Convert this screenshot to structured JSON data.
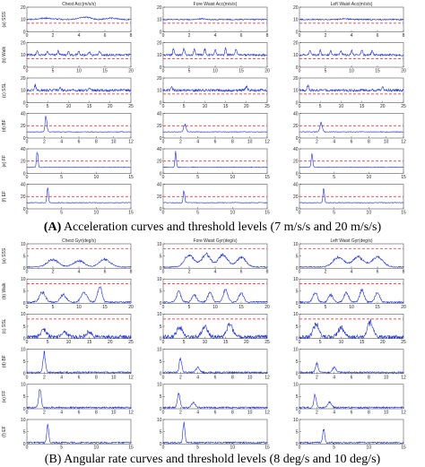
{
  "figure": {
    "caption_a_letter": "(A)",
    "caption_a_text": " Acceleration curves and threshold levels (7 m/s/s and 20 m/s/s)",
    "caption_b_text": "(B) Angular rate curves and threshold levels (8 deg/s and 10 deg/s)"
  },
  "colors": {
    "signal": "#1a2fd0",
    "threshold": "#e02020",
    "axis": "#333333"
  },
  "chart_data": [
    {
      "type": "line",
      "panel": "A",
      "row_labels": [
        "(a) SSS",
        "(b) Walk",
        "(c) SSL",
        "(d) BF",
        "(e) FF",
        "(f) EF"
      ],
      "column_titles": [
        "Chest Acc(m/s/s)",
        "Fore Waist Acc(m/s/s)",
        "Left Waist Acc(m/s/s)"
      ],
      "thresholds": [
        7,
        20
      ],
      "rows": [
        {
          "xlim": [
            0,
            8
          ],
          "ylim": [
            0,
            20
          ],
          "xticks": [
            0,
            2,
            4,
            6,
            8
          ],
          "yticks": [
            0,
            10,
            20
          ],
          "threshold": 7,
          "baseline": 10,
          "noise": 0.5,
          "events": [
            [
              {
                "t": 1.5,
                "a": 1,
                "w": 0.8
              },
              {
                "t": 4.5,
                "a": 2,
                "w": 0.6
              },
              {
                "t": 6.5,
                "a": 1,
                "w": 0.6
              }
            ],
            [
              {
                "t": 3.0,
                "a": 0.6,
                "w": 0.4
              }
            ],
            [
              {
                "t": 3.5,
                "a": 0.6,
                "w": 0.4
              }
            ]
          ]
        },
        {
          "xlim": [
            0,
            20
          ],
          "ylim": [
            0,
            20
          ],
          "xticks": [
            0,
            5,
            10,
            15,
            20
          ],
          "yticks": [
            0,
            10,
            20
          ],
          "threshold": 7,
          "baseline": 10,
          "noise": 0.8,
          "events": [
            [
              {
                "t": 2,
                "a": 3,
                "w": 0.2
              },
              {
                "t": 4,
                "a": 3,
                "w": 0.2
              },
              {
                "t": 6,
                "a": 3,
                "w": 0.2
              },
              {
                "t": 8,
                "a": 3,
                "w": 0.2
              },
              {
                "t": 10,
                "a": 3,
                "w": 0.2
              },
              {
                "t": 12,
                "a": 3,
                "w": 0.2
              },
              {
                "t": 14,
                "a": 3,
                "w": 0.2
              }
            ],
            [
              {
                "t": 2,
                "a": 5,
                "w": 0.2
              },
              {
                "t": 4,
                "a": 5,
                "w": 0.2
              },
              {
                "t": 6,
                "a": 5,
                "w": 0.2
              },
              {
                "t": 8,
                "a": 5,
                "w": 0.2
              },
              {
                "t": 10,
                "a": 5,
                "w": 0.2
              },
              {
                "t": 12,
                "a": 5,
                "w": 0.2
              },
              {
                "t": 14,
                "a": 5,
                "w": 0.2
              }
            ],
            [
              {
                "t": 2,
                "a": 4,
                "w": 0.2
              },
              {
                "t": 4,
                "a": 4,
                "w": 0.2
              },
              {
                "t": 6,
                "a": 4,
                "w": 0.2
              },
              {
                "t": 8,
                "a": 4,
                "w": 0.2
              },
              {
                "t": 10,
                "a": 4,
                "w": 0.2
              },
              {
                "t": 12,
                "a": 4,
                "w": 0.2
              },
              {
                "t": 14,
                "a": 4,
                "w": 0.2
              }
            ]
          ]
        },
        {
          "xlim": [
            0,
            25
          ],
          "ylim": [
            0,
            20
          ],
          "xticks": [
            0,
            5,
            10,
            15,
            20,
            25
          ],
          "yticks": [
            0,
            10,
            20
          ],
          "threshold": 7,
          "baseline": 10,
          "noise": 1,
          "events": [
            [
              {
                "t": 2,
                "a": 4,
                "w": 0.3
              },
              {
                "t": 8,
                "a": 2,
                "w": 0.3
              },
              {
                "t": 15,
                "a": 2,
                "w": 0.3
              }
            ],
            [
              {
                "t": 2,
                "a": 3,
                "w": 0.3
              },
              {
                "t": 20,
                "a": 3,
                "w": 0.3
              }
            ],
            [
              {
                "t": 2,
                "a": 4,
                "w": 0.3
              },
              {
                "t": 20,
                "a": 3,
                "w": 0.3
              }
            ]
          ]
        },
        {
          "xlim": [
            0,
            12
          ],
          "ylim": [
            0,
            40
          ],
          "xticks": [
            0,
            2,
            4,
            6,
            8,
            10,
            12
          ],
          "yticks": [
            0,
            20,
            40
          ],
          "threshold": 20,
          "baseline": 10,
          "noise": 0.5,
          "events": [
            [
              {
                "t": 2.2,
                "a": 25,
                "w": 0.15
              }
            ],
            [
              {
                "t": 2.5,
                "a": 12,
                "w": 0.2
              }
            ],
            [
              {
                "t": 2.5,
                "a": 14,
                "w": 0.2
              }
            ]
          ]
        },
        {
          "xlim": [
            0,
            15
          ],
          "ylim": [
            0,
            40
          ],
          "xticks": [
            0,
            5,
            10,
            15
          ],
          "yticks": [
            0,
            20,
            40
          ],
          "threshold": 20,
          "baseline": 10,
          "noise": 0.5,
          "events": [
            [
              {
                "t": 1.5,
                "a": 26,
                "w": 0.15
              }
            ],
            [
              {
                "t": 1.8,
                "a": 24,
                "w": 0.15
              }
            ],
            [
              {
                "t": 1.8,
                "a": 22,
                "w": 0.15
              }
            ]
          ]
        },
        {
          "xlim": [
            0,
            15
          ],
          "ylim": [
            0,
            40
          ],
          "xticks": [
            0,
            5,
            10,
            15
          ],
          "yticks": [
            0,
            20,
            40
          ],
          "threshold": 20,
          "baseline": 10,
          "noise": 0.5,
          "events": [
            [
              {
                "t": 3,
                "a": 25,
                "w": 0.15
              }
            ],
            [
              {
                "t": 3,
                "a": 20,
                "w": 0.15
              }
            ],
            [
              {
                "t": 3.5,
                "a": 22,
                "w": 0.15
              }
            ]
          ]
        }
      ]
    },
    {
      "type": "line",
      "panel": "B",
      "row_labels": [
        "(a) SSS",
        "(b) Walk",
        "(c) SSL",
        "(d) BF",
        "(e) FF",
        "(f) EF"
      ],
      "column_titles": [
        "Chest Gyr(deg/s)",
        "Fore Waist Gyr(deg/s)",
        "Left Waist Gyr(deg/s)"
      ],
      "thresholds": [
        8,
        10
      ],
      "rows": [
        {
          "xlim": [
            0,
            8
          ],
          "ylim": [
            0,
            10
          ],
          "xticks": [
            0,
            2,
            4,
            6,
            8
          ],
          "yticks": [
            0,
            5,
            10
          ],
          "threshold": 8,
          "baseline": 0.5,
          "noise": 0.2,
          "events": [
            [
              {
                "t": 2,
                "a": 3,
                "w": 0.6
              },
              {
                "t": 4,
                "a": 2.5,
                "w": 0.6
              },
              {
                "t": 6,
                "a": 3,
                "w": 0.6
              }
            ],
            [
              {
                "t": 2,
                "a": 5,
                "w": 0.5
              },
              {
                "t": 3.3,
                "a": 5,
                "w": 0.5
              },
              {
                "t": 4.6,
                "a": 5,
                "w": 0.5
              },
              {
                "t": 6,
                "a": 4,
                "w": 0.5
              }
            ],
            [
              {
                "t": 3,
                "a": 4,
                "w": 0.6
              },
              {
                "t": 4.5,
                "a": 4,
                "w": 0.6
              },
              {
                "t": 6,
                "a": 4,
                "w": 0.6
              }
            ]
          ]
        },
        {
          "xlim": [
            0,
            20
          ],
          "ylim": [
            0,
            10
          ],
          "xticks": [
            0,
            5,
            10,
            15,
            20
          ],
          "yticks": [
            0,
            5,
            10
          ],
          "threshold": 8,
          "baseline": 0.5,
          "noise": 0.3,
          "events": [
            [
              {
                "t": 3,
                "a": 4,
                "w": 0.8
              },
              {
                "t": 7,
                "a": 3,
                "w": 0.8
              },
              {
                "t": 11,
                "a": 4,
                "w": 0.8
              },
              {
                "t": 14,
                "a": 6,
                "w": 0.6
              }
            ],
            [
              {
                "t": 3,
                "a": 4,
                "w": 0.6
              },
              {
                "t": 6,
                "a": 3,
                "w": 0.6
              },
              {
                "t": 9,
                "a": 4,
                "w": 0.6
              },
              {
                "t": 12,
                "a": 5,
                "w": 0.6
              },
              {
                "t": 15,
                "a": 4,
                "w": 0.6
              }
            ],
            [
              {
                "t": 3,
                "a": 4,
                "w": 0.6
              },
              {
                "t": 6,
                "a": 3,
                "w": 0.6
              },
              {
                "t": 9,
                "a": 4,
                "w": 0.6
              },
              {
                "t": 12,
                "a": 5,
                "w": 0.6
              },
              {
                "t": 15,
                "a": 4,
                "w": 0.6
              }
            ]
          ]
        },
        {
          "xlim": [
            0,
            25
          ],
          "ylim": [
            0,
            10
          ],
          "xticks": [
            0,
            5,
            10,
            15,
            20,
            25
          ],
          "yticks": [
            0,
            5,
            10
          ],
          "threshold": 8,
          "baseline": 0.6,
          "noise": 0.8,
          "events": [
            [
              {
                "t": 4,
                "a": 3,
                "w": 1
              },
              {
                "t": 9,
                "a": 2,
                "w": 1
              },
              {
                "t": 15,
                "a": 2,
                "w": 1
              }
            ],
            [
              {
                "t": 4,
                "a": 4,
                "w": 1
              },
              {
                "t": 10,
                "a": 4,
                "w": 1
              },
              {
                "t": 16,
                "a": 5,
                "w": 1
              }
            ],
            [
              {
                "t": 4,
                "a": 5,
                "w": 1
              },
              {
                "t": 10,
                "a": 4,
                "w": 1
              },
              {
                "t": 17,
                "a": 6,
                "w": 1
              }
            ]
          ]
        },
        {
          "xlim": [
            0,
            12
          ],
          "ylim": [
            0,
            10
          ],
          "xticks": [
            0,
            2,
            4,
            6,
            8,
            10,
            12
          ],
          "yticks": [
            0,
            5,
            10
          ],
          "threshold": 10,
          "baseline": 0.5,
          "noise": 0.3,
          "events": [
            [
              {
                "t": 2,
                "a": 8,
                "w": 0.2
              }
            ],
            [
              {
                "t": 2,
                "a": 6,
                "w": 0.2
              },
              {
                "t": 4,
                "a": 2,
                "w": 0.3
              }
            ],
            [
              {
                "t": 2,
                "a": 4,
                "w": 0.2
              },
              {
                "t": 4,
                "a": 2,
                "w": 0.3
              }
            ]
          ]
        },
        {
          "xlim": [
            0,
            12
          ],
          "ylim": [
            0,
            10
          ],
          "xticks": [
            0,
            2,
            4,
            6,
            8,
            10,
            12
          ],
          "yticks": [
            0,
            5,
            10
          ],
          "threshold": 10,
          "baseline": 0.5,
          "noise": 0.3,
          "events": [
            [
              {
                "t": 1.5,
                "a": 8,
                "w": 0.2
              }
            ],
            [
              {
                "t": 1.8,
                "a": 6,
                "w": 0.2
              },
              {
                "t": 3.5,
                "a": 2,
                "w": 0.3
              }
            ],
            [
              {
                "t": 1.8,
                "a": 5,
                "w": 0.2
              },
              {
                "t": 3.5,
                "a": 2,
                "w": 0.3
              }
            ]
          ]
        },
        {
          "xlim": [
            0,
            15
          ],
          "ylim": [
            0,
            10
          ],
          "xticks": [
            0,
            5,
            10,
            15
          ],
          "yticks": [
            0,
            5,
            10
          ],
          "threshold": 10,
          "baseline": 0.5,
          "noise": 0.3,
          "events": [
            [
              {
                "t": 3,
                "a": 7,
                "w": 0.2
              }
            ],
            [
              {
                "t": 3,
                "a": 8,
                "w": 0.2
              }
            ],
            [
              {
                "t": 3.5,
                "a": 6,
                "w": 0.2
              }
            ]
          ]
        }
      ]
    }
  ]
}
